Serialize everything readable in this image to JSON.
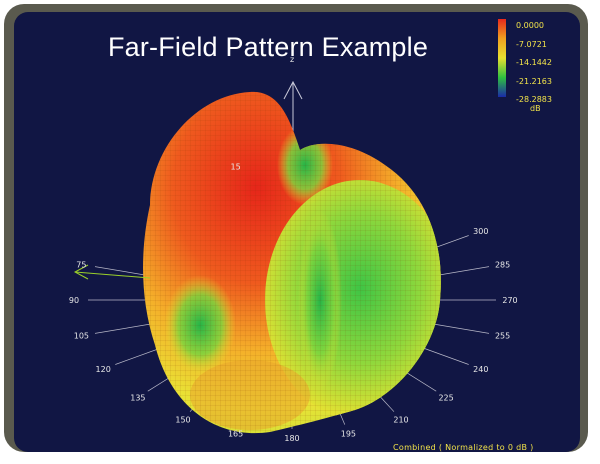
{
  "chart_data": {
    "type": "3d-surface",
    "title": "Far-Field Pattern Example",
    "axis_label": "z",
    "colorbar": {
      "labels": [
        "0.0000",
        "-7.0721",
        "-14.1442",
        "-21.2163",
        "-28.2883"
      ],
      "unit": "dB",
      "colors": [
        "#e8281c",
        "#f0a020",
        "#e8e030",
        "#2fc040",
        "#1a2aa8"
      ]
    },
    "azimuth_ticks": [
      {
        "label": "15",
        "angle": 15
      },
      {
        "label": "75",
        "angle": 75
      },
      {
        "label": "90",
        "angle": 90
      },
      {
        "label": "105",
        "angle": 105
      },
      {
        "label": "120",
        "angle": 120
      },
      {
        "label": "135",
        "angle": 135
      },
      {
        "label": "150",
        "angle": 150
      },
      {
        "label": "165",
        "angle": 165
      },
      {
        "label": "180",
        "angle": 180
      },
      {
        "label": "195",
        "angle": 195
      },
      {
        "label": "210",
        "angle": 210
      },
      {
        "label": "225",
        "angle": 225
      },
      {
        "label": "240",
        "angle": 240
      },
      {
        "label": "255",
        "angle": 255
      },
      {
        "label": "270",
        "angle": 270
      },
      {
        "label": "285",
        "angle": 285
      },
      {
        "label": "300",
        "angle": 300
      }
    ],
    "footnote": "Combined  ( Normalized to 0 dB )"
  }
}
